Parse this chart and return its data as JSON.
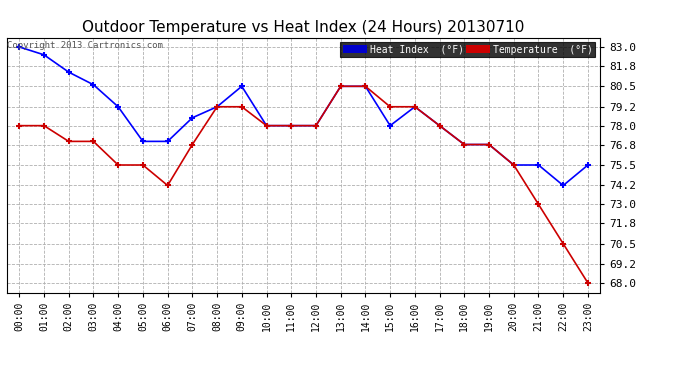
{
  "title": "Outdoor Temperature vs Heat Index (24 Hours) 20130710",
  "copyright": "Copyright 2013 Cartronics.com",
  "hours": [
    "00:00",
    "01:00",
    "02:00",
    "03:00",
    "04:00",
    "05:00",
    "06:00",
    "07:00",
    "08:00",
    "09:00",
    "10:00",
    "11:00",
    "12:00",
    "13:00",
    "14:00",
    "15:00",
    "16:00",
    "17:00",
    "18:00",
    "19:00",
    "20:00",
    "21:00",
    "22:00",
    "23:00"
  ],
  "heat_index": [
    83.0,
    82.5,
    81.4,
    80.6,
    79.2,
    77.0,
    77.0,
    78.5,
    79.2,
    80.5,
    78.0,
    78.0,
    78.0,
    80.5,
    80.5,
    78.0,
    79.2,
    78.0,
    76.8,
    76.8,
    75.5,
    75.5,
    74.2,
    75.5
  ],
  "temperature": [
    78.0,
    78.0,
    77.0,
    77.0,
    75.5,
    75.5,
    74.2,
    76.8,
    79.2,
    79.2,
    78.0,
    78.0,
    78.0,
    80.5,
    80.5,
    79.2,
    79.2,
    78.0,
    76.8,
    76.8,
    75.5,
    73.0,
    70.5,
    68.0
  ],
  "ylim_min": 67.4,
  "ylim_max": 83.6,
  "yticks": [
    68.0,
    69.2,
    70.5,
    71.8,
    73.0,
    74.2,
    75.5,
    76.8,
    78.0,
    79.2,
    80.5,
    81.8,
    83.0
  ],
  "heat_index_color": "#0000ff",
  "temperature_color": "#cc0000",
  "background_color": "#ffffff",
  "plot_bg_color": "#ffffff",
  "grid_color": "#b0b0b0",
  "title_fontsize": 11,
  "legend_heat_label": "Heat Index  (°F)",
  "legend_temp_label": "Temperature  (°F)",
  "legend_heat_bg": "#0000cc",
  "legend_temp_bg": "#cc0000",
  "legend_text_color": "#ffffff"
}
